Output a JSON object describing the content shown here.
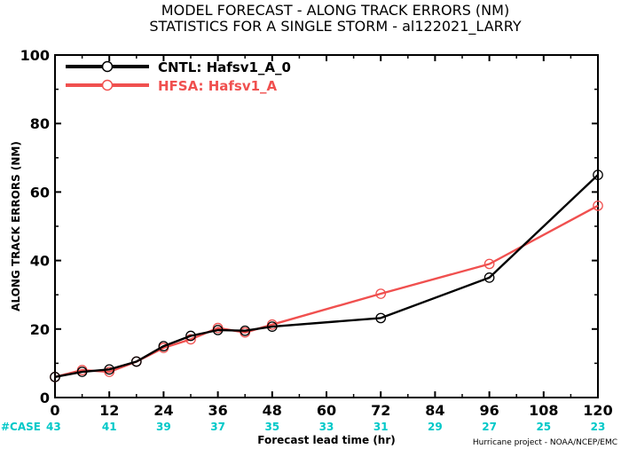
{
  "title_line1": "MODEL FORECAST - ALONG TRACK ERRORS (NM)",
  "title_line2": "STATISTICS FOR A SINGLE STORM - al122021_LARRY",
  "credit": "Hurricane project - NOAA/NCEP/EMC",
  "case_label": "#CASE",
  "colors": {
    "cntl": "#000000",
    "hfsa": "#f0504f",
    "case": "#00c8c8"
  },
  "chart_data": {
    "type": "line",
    "title": "MODEL FORECAST - ALONG TRACK ERRORS (NM)",
    "subtitle": "STATISTICS FOR A SINGLE STORM - al122021_LARRY",
    "xlabel": "Forecast lead time (hr)",
    "ylabel": "ALONG TRACK ERRORS (NM)",
    "xlim": [
      0,
      120
    ],
    "ylim": [
      0,
      100
    ],
    "x_ticks": [
      "0",
      "12",
      "24",
      "36",
      "48",
      "60",
      "72",
      "84",
      "96",
      "108",
      "120"
    ],
    "y_ticks": [
      "0",
      "20",
      "40",
      "60",
      "80",
      "100"
    ],
    "grid": false,
    "legend_position": "top-left",
    "case_x": [
      0,
      12,
      24,
      36,
      48,
      60,
      72,
      84,
      96,
      108,
      120
    ],
    "case_counts": [
      "43",
      "41",
      "39",
      "37",
      "35",
      "33",
      "31",
      "29",
      "27",
      "25",
      "23"
    ],
    "series": [
      {
        "name": "CNTL: Hafsv1_A_0",
        "color": "#000000",
        "x": [
          0,
          6,
          12,
          18,
          24,
          30,
          36,
          42,
          48,
          72,
          96,
          120
        ],
        "y": [
          6,
          7.5,
          8.2,
          10.5,
          15,
          18,
          19.7,
          19.5,
          20.7,
          23.2,
          35,
          65
        ]
      },
      {
        "name": "HFSA: Hafsv1_A",
        "color": "#f0504f",
        "x": [
          0,
          6,
          12,
          18,
          24,
          30,
          36,
          42,
          48,
          72,
          96,
          120
        ],
        "y": [
          6,
          8,
          7.5,
          10.5,
          14.5,
          17,
          20.3,
          19,
          21.3,
          30.3,
          39,
          56
        ]
      }
    ]
  }
}
